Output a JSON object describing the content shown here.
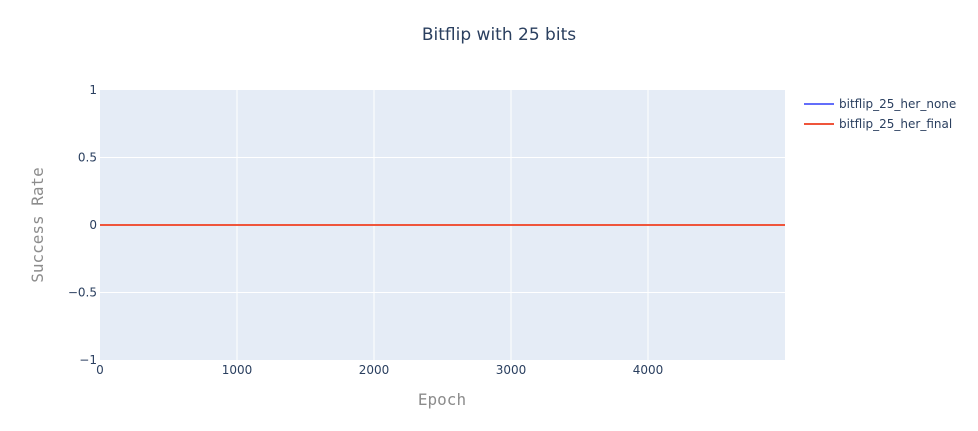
{
  "chart_data": {
    "type": "line",
    "title": "Bitflip with 25 bits",
    "xlabel": "Epoch",
    "ylabel": "Success Rate",
    "xlim": [
      0,
      5000
    ],
    "ylim": [
      -1,
      1
    ],
    "x_ticks": [
      0,
      1000,
      2000,
      3000,
      4000
    ],
    "y_ticks": [
      -1,
      -0.5,
      0,
      0.5,
      1
    ],
    "x_tick_labels": [
      "0",
      "1000",
      "2000",
      "3000",
      "4000"
    ],
    "y_tick_labels": [
      "−1",
      "−0.5",
      "0",
      "0.5",
      "1"
    ],
    "grid": true,
    "legend_position": "right",
    "colors": {
      "plot_bg": "#e5ecf6",
      "grid": "#ffffff"
    },
    "series": [
      {
        "name": "bitflip_25_her_none",
        "color": "#636efa",
        "x": [
          0,
          5000
        ],
        "values": [
          0,
          0
        ]
      },
      {
        "name": "bitflip_25_her_final",
        "color": "#ef553b",
        "x": [
          0,
          5000
        ],
        "values": [
          0,
          0
        ]
      }
    ]
  }
}
